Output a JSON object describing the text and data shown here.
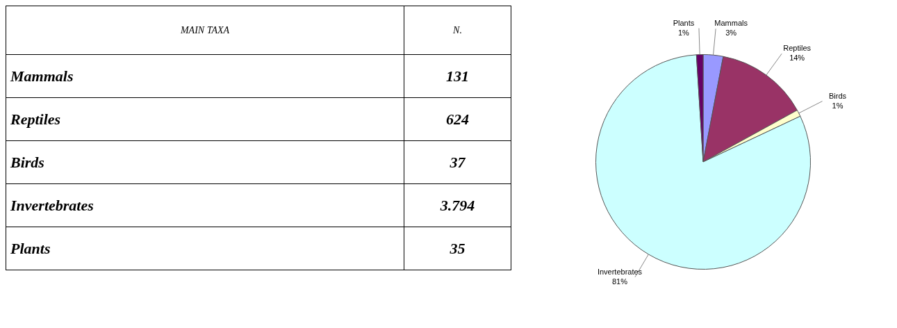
{
  "chart_data": [
    {
      "type": "other",
      "xlabel": "MAIN TAXA",
      "ylabel": "N.",
      "categories": [
        "Mammals",
        "Reptiles",
        "Birds",
        "Invertebrates",
        "Plants"
      ],
      "value_labels": [
        "131",
        "624",
        "37",
        "3.794",
        "35"
      ]
    },
    {
      "type": "pie",
      "categories": [
        "Mammals",
        "Reptiles",
        "Birds",
        "Invertebrates",
        "Plants"
      ],
      "values": [
        3,
        14,
        1,
        81,
        1
      ],
      "colors": [
        "#9999ff",
        "#993366",
        "#ffffcc",
        "#ccffff",
        "#660066"
      ],
      "value_labels": [
        "3%",
        "14%",
        "1%",
        "81%",
        "1%"
      ]
    }
  ]
}
